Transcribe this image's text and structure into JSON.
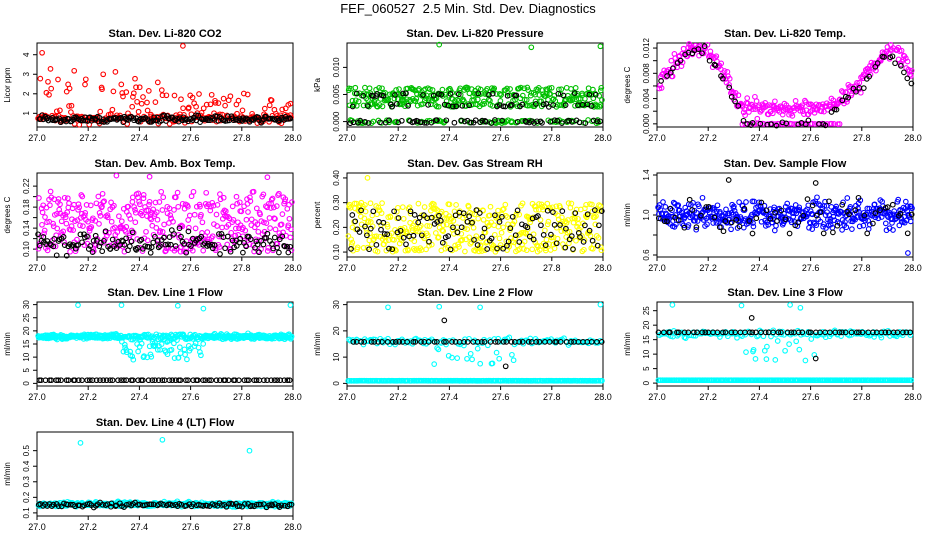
{
  "title": "FEF_060527  2.5 Min. Std. Dev. Diagnostics",
  "colors": {
    "red": "#ff0000",
    "green": "#00c000",
    "magenta": "#ff00ff",
    "yellow": "#ffff00",
    "blue": "#0000ff",
    "cyan": "#00ffff",
    "black": "#000000"
  },
  "chart_data": [
    {
      "type": "scatter",
      "title": "Stan. Dev. Li-820 CO2",
      "ylabel": "Licor ppm",
      "xlim": [
        27.0,
        28.0
      ],
      "ylim": [
        0.3,
        4.6
      ],
      "xticks": [
        27.0,
        27.2,
        27.4,
        27.6,
        27.8,
        28.0
      ],
      "xtick_labels": [
        "27.0",
        "27.2",
        "27.4",
        "27.6",
        "27.8",
        "28.0"
      ],
      "yticks": [
        1,
        2,
        3,
        4
      ],
      "ytick_labels": [
        "1",
        "2",
        "3",
        "4"
      ],
      "series": [
        {
          "color": "red",
          "pattern": "noise",
          "base": 0.75,
          "spread": 0.25,
          "n": 260,
          "spikeFrac": 0.35,
          "spikeMax": 2.6,
          "seed": 11
        },
        {
          "color": "black",
          "pattern": "noise",
          "base": 0.7,
          "spread": 0.15,
          "n": 180,
          "seed": 12
        }
      ],
      "outliers": [
        {
          "color": "red",
          "x": 27.02,
          "y": 4.1
        },
        {
          "color": "red",
          "x": 27.57,
          "y": 4.45
        },
        {
          "color": "red",
          "x": 27.99,
          "y": 1.5
        }
      ]
    },
    {
      "type": "scatter",
      "title": "Stan. Dev. Li-820 Pressure",
      "ylabel": "kPa",
      "xlim": [
        27.0,
        28.0
      ],
      "ylim": [
        -0.001,
        0.0145
      ],
      "xticks": [
        27.0,
        27.2,
        27.4,
        27.6,
        27.8,
        28.0
      ],
      "xtick_labels": [
        "27.0",
        "27.2",
        "27.4",
        "27.6",
        "27.8",
        "28.0"
      ],
      "yticks": [
        0.0,
        0.005,
        0.01
      ],
      "ytick_labels": [
        "0.000",
        "0.005",
        "0.010"
      ],
      "series": [
        {
          "color": "green",
          "pattern": "levels",
          "levels": [
            0.0,
            0.003,
            0.004,
            0.005,
            0.006
          ],
          "n": 420,
          "seed": 21
        },
        {
          "color": "black",
          "pattern": "levels",
          "levels": [
            0.0,
            0.0,
            0.003,
            0.005
          ],
          "n": 120,
          "seed": 22
        }
      ],
      "outliers": [
        {
          "color": "green",
          "x": 27.36,
          "y": 0.0142
        },
        {
          "color": "green",
          "x": 27.72,
          "y": 0.0137
        },
        {
          "color": "green",
          "x": 27.99,
          "y": 0.0139
        }
      ]
    },
    {
      "type": "scatter",
      "title": "Stan. Dev. Li-820 Temp.",
      "ylabel": "degrees C",
      "xlim": [
        27.0,
        28.0
      ],
      "ylim": [
        -0.0005,
        0.0128
      ],
      "xticks": [
        27.0,
        27.2,
        27.4,
        27.6,
        27.8,
        28.0
      ],
      "xtick_labels": [
        "27.0",
        "27.2",
        "27.4",
        "27.6",
        "27.8",
        "28.0"
      ],
      "yticks": [
        0.0,
        0.002,
        0.004,
        0.006,
        0.008,
        0.01,
        0.012
      ],
      "ytick_labels": [
        "0.000",
        "",
        "0.004",
        "",
        "0.008",
        "",
        "0.012"
      ],
      "series": [
        {
          "color": "magenta",
          "pattern": "curve",
          "curve": [
            [
              27.0,
              0.006
            ],
            [
              27.1,
              0.011
            ],
            [
              27.18,
              0.0125
            ],
            [
              27.25,
              0.009
            ],
            [
              27.32,
              0.003
            ],
            [
              27.34,
              0.0025
            ],
            [
              27.35,
              0.0025
            ],
            [
              27.65,
              0.0025
            ],
            [
              27.68,
              0.003
            ],
            [
              27.78,
              0.006
            ],
            [
              27.86,
              0.01
            ],
            [
              27.93,
              0.0125
            ],
            [
              28.0,
              0.007
            ]
          ],
          "jitter": 0.0012,
          "n": 300,
          "seed": 31
        },
        {
          "color": "magenta",
          "pattern": "flat",
          "y": 0.0,
          "x0": 27.33,
          "x1": 27.72,
          "n": 40,
          "seed": 32
        },
        {
          "color": "black",
          "pattern": "curve",
          "curve": [
            [
              27.0,
              0.006
            ],
            [
              27.1,
              0.0105
            ],
            [
              27.18,
              0.012
            ],
            [
              27.25,
              0.008
            ],
            [
              27.32,
              0.002
            ],
            [
              27.34,
              0.0
            ],
            [
              27.66,
              0.0
            ],
            [
              27.7,
              0.003
            ],
            [
              27.8,
              0.006
            ],
            [
              27.9,
              0.0115
            ],
            [
              28.0,
              0.0065
            ]
          ],
          "jitter": 0.0006,
          "n": 70,
          "seed": 33
        }
      ],
      "outliers": []
    },
    {
      "type": "scatter",
      "title": "Stan. Dev. Amb. Box Temp.",
      "ylabel": "degrees C",
      "xlim": [
        27.0,
        28.0
      ],
      "ylim": [
        0.085,
        0.245
      ],
      "xticks": [
        27.0,
        27.2,
        27.4,
        27.6,
        27.8,
        28.0
      ],
      "xtick_labels": [
        "27.0",
        "27.2",
        "27.4",
        "27.6",
        "27.8",
        "28.0"
      ],
      "yticks": [
        0.1,
        0.12,
        0.14,
        0.16,
        0.18,
        0.2,
        0.22
      ],
      "ytick_labels": [
        "0.10",
        "",
        "0.14",
        "",
        "0.18",
        "",
        "0.22"
      ],
      "series": [
        {
          "color": "magenta",
          "pattern": "band",
          "lo": 0.095,
          "hi": 0.21,
          "n": 420,
          "seed": 41
        },
        {
          "color": "black",
          "pattern": "noise",
          "base": 0.11,
          "spread": 0.02,
          "n": 150,
          "seed": 42
        }
      ],
      "outliers": [
        {
          "color": "magenta",
          "x": 27.31,
          "y": 0.24
        },
        {
          "color": "magenta",
          "x": 27.44,
          "y": 0.238
        },
        {
          "color": "magenta",
          "x": 27.9,
          "y": 0.237
        }
      ]
    },
    {
      "type": "scatter",
      "title": "Stan. Dev. Gas Stream RH",
      "ylabel": "percent",
      "xlim": [
        27.0,
        28.0
      ],
      "ylim": [
        0.08,
        0.42
      ],
      "xticks": [
        27.0,
        27.2,
        27.4,
        27.6,
        27.8,
        28.0
      ],
      "xtick_labels": [
        "27.0",
        "27.2",
        "27.4",
        "27.6",
        "27.8",
        "28.0"
      ],
      "yticks": [
        0.1,
        0.2,
        0.3,
        0.4
      ],
      "ytick_labels": [
        "0.10",
        "0.20",
        "0.30",
        "0.40"
      ],
      "series": [
        {
          "color": "yellow",
          "pattern": "band",
          "lo": 0.1,
          "hi": 0.3,
          "n": 420,
          "seed": 51
        },
        {
          "color": "black",
          "pattern": "band",
          "lo": 0.11,
          "hi": 0.27,
          "n": 110,
          "seed": 52
        }
      ],
      "outliers": [
        {
          "color": "yellow",
          "x": 27.08,
          "y": 0.4
        }
      ]
    },
    {
      "type": "scatter",
      "title": "Stan. Dev. Sample Flow",
      "ylabel": "ml/min",
      "xlim": [
        27.0,
        28.0
      ],
      "ylim": [
        0.58,
        1.42
      ],
      "xticks": [
        27.0,
        27.2,
        27.4,
        27.6,
        27.8,
        28.0
      ],
      "xtick_labels": [
        "27.0",
        "27.2",
        "27.4",
        "27.6",
        "27.8",
        "28.0"
      ],
      "yticks": [
        0.6,
        0.8,
        1.0,
        1.2,
        1.4
      ],
      "ytick_labels": [
        "0.6",
        "",
        "1.0",
        "",
        "1.4"
      ],
      "series": [
        {
          "color": "blue",
          "pattern": "noise",
          "base": 1.0,
          "spread": 0.12,
          "n": 420,
          "seed": 61
        },
        {
          "color": "black",
          "pattern": "noise",
          "base": 0.98,
          "spread": 0.14,
          "n": 60,
          "seed": 62
        }
      ],
      "outliers": [
        {
          "color": "black",
          "x": 27.28,
          "y": 1.35
        },
        {
          "color": "black",
          "x": 27.62,
          "y": 1.32
        },
        {
          "color": "blue",
          "x": 27.98,
          "y": 0.62
        }
      ]
    },
    {
      "type": "scatter",
      "title": "Stan. Dev. Line 1 Flow",
      "ylabel": "ml/min",
      "xlim": [
        27.0,
        28.0
      ],
      "ylim": [
        -1,
        31
      ],
      "xticks": [
        27.0,
        27.2,
        27.4,
        27.6,
        27.8,
        28.0
      ],
      "xtick_labels": [
        "27.0",
        "27.2",
        "27.4",
        "27.6",
        "27.8",
        "28.0"
      ],
      "yticks": [
        0,
        5,
        10,
        15,
        20,
        25,
        30
      ],
      "ytick_labels": [
        "0",
        "5",
        "10",
        "15",
        "20",
        "25",
        "30"
      ],
      "series": [
        {
          "color": "cyan",
          "pattern": "dipband",
          "base": 17.8,
          "spread": 0.8,
          "dipX0": 27.33,
          "dipX1": 27.65,
          "dipMin": 9,
          "n": 480,
          "seed": 71
        },
        {
          "color": "black",
          "pattern": "flat",
          "y": 1.2,
          "x0": 27.0,
          "x1": 28.0,
          "n": 75,
          "seed": 72
        }
      ],
      "outliers": [
        {
          "color": "cyan",
          "x": 27.16,
          "y": 29.8
        },
        {
          "color": "cyan",
          "x": 27.33,
          "y": 29.8
        },
        {
          "color": "cyan",
          "x": 27.55,
          "y": 29.6
        },
        {
          "color": "cyan",
          "x": 27.65,
          "y": 28.5
        },
        {
          "color": "cyan",
          "x": 27.99,
          "y": 29.8
        }
      ]
    },
    {
      "type": "scatter",
      "title": "Stan. Dev. Line 2 Flow",
      "ylabel": "ml/min",
      "xlim": [
        27.0,
        28.0
      ],
      "ylim": [
        -1,
        31
      ],
      "xticks": [
        27.0,
        27.2,
        27.4,
        27.6,
        27.8,
        28.0
      ],
      "xtick_labels": [
        "27.0",
        "27.2",
        "27.4",
        "27.6",
        "27.8",
        "28.0"
      ],
      "yticks": [
        0,
        10,
        20,
        30
      ],
      "ytick_labels": [
        "0",
        "10",
        "20",
        "30"
      ],
      "series": [
        {
          "color": "cyan",
          "pattern": "flat",
          "y": 1.0,
          "x0": 27.0,
          "x1": 28.0,
          "n": 220,
          "seed": 81
        },
        {
          "color": "cyan",
          "pattern": "dipband",
          "base": 16,
          "spread": 1.0,
          "dipX0": 27.34,
          "dipX1": 27.67,
          "dipMin": 7,
          "n": 150,
          "seed": 82
        },
        {
          "color": "black",
          "pattern": "flat",
          "y": 15.8,
          "x0": 27.0,
          "x1": 28.0,
          "n": 60,
          "seed": 83
        }
      ],
      "outliers": [
        {
          "color": "cyan",
          "x": 27.16,
          "y": 29.0
        },
        {
          "color": "cyan",
          "x": 27.36,
          "y": 29.2
        },
        {
          "color": "cyan",
          "x": 27.52,
          "y": 29.0
        },
        {
          "color": "cyan",
          "x": 27.99,
          "y": 30.0
        },
        {
          "color": "black",
          "x": 27.38,
          "y": 24.0
        },
        {
          "color": "black",
          "x": 27.62,
          "y": 6.5
        }
      ]
    },
    {
      "type": "scatter",
      "title": "Stan. Dev. Line 3 Flow",
      "ylabel": "ml/min",
      "xlim": [
        27.0,
        28.0
      ],
      "ylim": [
        -1,
        28
      ],
      "xticks": [
        27.0,
        27.2,
        27.4,
        27.6,
        27.8,
        28.0
      ],
      "xtick_labels": [
        "27.0",
        "27.2",
        "27.4",
        "27.6",
        "27.8",
        "28.0"
      ],
      "yticks": [
        0,
        5,
        10,
        15,
        20,
        25
      ],
      "ytick_labels": [
        "0",
        "5",
        "10",
        "15",
        "20",
        "25"
      ],
      "series": [
        {
          "color": "cyan",
          "pattern": "flat",
          "y": 1.0,
          "x0": 27.0,
          "x1": 28.0,
          "n": 220,
          "seed": 91
        },
        {
          "color": "cyan",
          "pattern": "dipband",
          "base": 17,
          "spread": 0.9,
          "dipX0": 27.33,
          "dipX1": 27.66,
          "dipMin": 7,
          "n": 170,
          "seed": 92
        },
        {
          "color": "black",
          "pattern": "flat",
          "y": 17.5,
          "x0": 27.0,
          "x1": 28.0,
          "n": 60,
          "seed": 93
        }
      ],
      "outliers": [
        {
          "color": "cyan",
          "x": 27.06,
          "y": 27.0
        },
        {
          "color": "cyan",
          "x": 27.33,
          "y": 26.8
        },
        {
          "color": "cyan",
          "x": 27.52,
          "y": 27.0
        },
        {
          "color": "cyan",
          "x": 27.56,
          "y": 26.0
        },
        {
          "color": "black",
          "x": 27.37,
          "y": 22.5
        },
        {
          "color": "black",
          "x": 27.62,
          "y": 8.5
        }
      ]
    },
    {
      "type": "scatter",
      "title": "Stan. Dev. Line 4 (LT) Flow",
      "ylabel": "ml/min",
      "xlim": [
        27.0,
        28.0
      ],
      "ylim": [
        0.08,
        0.62
      ],
      "xticks": [
        27.0,
        27.2,
        27.4,
        27.6,
        27.8,
        28.0
      ],
      "xtick_labels": [
        "27.0",
        "27.2",
        "27.4",
        "27.6",
        "27.8",
        "28.0"
      ],
      "yticks": [
        0.1,
        0.2,
        0.3,
        0.4,
        0.5
      ],
      "ytick_labels": [
        "0.1",
        "0.2",
        "0.3",
        "0.4",
        "0.5"
      ],
      "series": [
        {
          "color": "cyan",
          "pattern": "noise",
          "base": 0.155,
          "spread": 0.012,
          "n": 480,
          "seed": 101
        },
        {
          "color": "black",
          "pattern": "noise",
          "base": 0.15,
          "spread": 0.012,
          "n": 110,
          "seed": 102
        }
      ],
      "outliers": [
        {
          "color": "cyan",
          "x": 27.17,
          "y": 0.55
        },
        {
          "color": "cyan",
          "x": 27.49,
          "y": 0.57
        },
        {
          "color": "cyan",
          "x": 27.83,
          "y": 0.5
        }
      ]
    }
  ]
}
